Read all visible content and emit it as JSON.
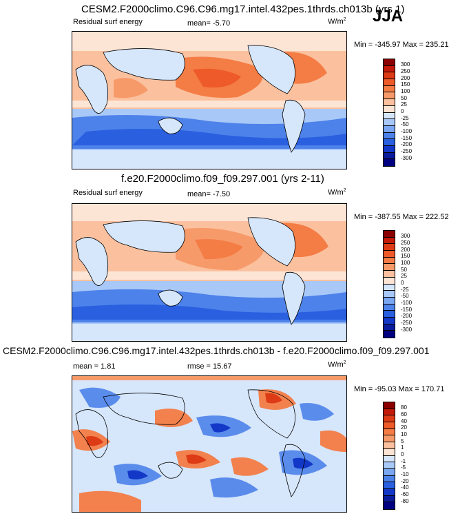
{
  "season": "JJA",
  "units_base": "W/m",
  "units_exp": "2",
  "panels": [
    {
      "title": "CESM2.F2000climo.C96.C96.mg17.intel.432pes.1thrds.ch013b (yrs 1)",
      "subtitle": "Residual surf energy",
      "mean_text": "mean=  -5.70",
      "minmax": "Min = -345.97 Max = 235.21",
      "levels": [
        "300",
        "250",
        "200",
        "150",
        "100",
        "50",
        "25",
        "0",
        "-25",
        "-50",
        "-100",
        "-150",
        "-200",
        "-250",
        "-300"
      ],
      "colors": [
        "#8b0000",
        "#c41a0a",
        "#dd3b16",
        "#ee5a2a",
        "#f47c45",
        "#f79a6a",
        "#fbc19f",
        "#fde5d6",
        "#d6e6fb",
        "#a8c8f7",
        "#7aa6f2",
        "#4d82ea",
        "#2a5fe0",
        "#1338c8",
        "#0a1c9c",
        "#000080"
      ]
    },
    {
      "title": "f.e20.F2000climo.f09_f09.297.001 (yrs 2-11)",
      "subtitle": "Residual surf energy",
      "mean_text": "mean=  -7.50",
      "minmax": "Min = -387.55 Max = 222.52",
      "levels": [
        "300",
        "250",
        "200",
        "150",
        "100",
        "50",
        "25",
        "0",
        "-25",
        "-50",
        "-100",
        "-150",
        "-200",
        "-250",
        "-300"
      ],
      "colors": [
        "#8b0000",
        "#c41a0a",
        "#dd3b16",
        "#ee5a2a",
        "#f47c45",
        "#f79a6a",
        "#fbc19f",
        "#fde5d6",
        "#d6e6fb",
        "#a8c8f7",
        "#7aa6f2",
        "#4d82ea",
        "#2a5fe0",
        "#1338c8",
        "#0a1c9c",
        "#000080"
      ]
    },
    {
      "title": "CESM2.F2000climo.C96.C96.mg17.intel.432pes.1thrds.ch013b - f.e20.F2000climo.f09_f09.297.001",
      "mean_text": "mean =   1.81",
      "rmse_text": "rmse =  15.67",
      "minmax": "Min = -95.03 Max = 170.71",
      "levels": [
        "80",
        "60",
        "40",
        "20",
        "10",
        "5",
        "1",
        "0",
        "-1",
        "-5",
        "-10",
        "-20",
        "-40",
        "-60",
        "-80"
      ],
      "colors": [
        "#8b0000",
        "#c41a0a",
        "#dd3b16",
        "#ee5a2a",
        "#f47c45",
        "#f79a6a",
        "#fbc19f",
        "#fde5d6",
        "#d6e6fb",
        "#a8c8f7",
        "#7aa6f2",
        "#4d82ea",
        "#2a5fe0",
        "#1338c8",
        "#0a1c9c",
        "#000080"
      ]
    }
  ]
}
